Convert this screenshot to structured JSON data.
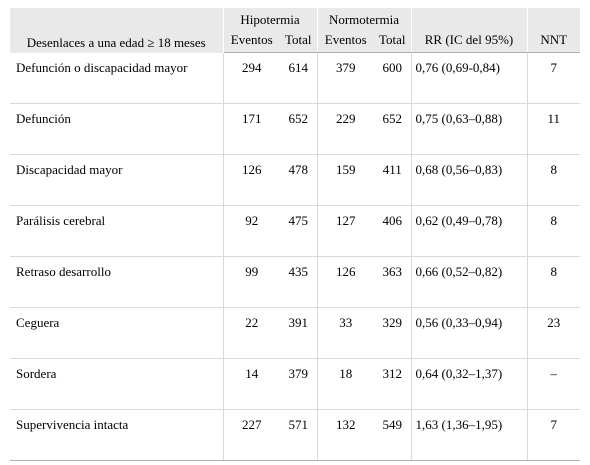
{
  "header": {
    "outcome_label": "Desenlaces a una edad ≥ 18 meses",
    "group_hypothermia": "Hipotermia",
    "group_normothermia": "Normotermia",
    "col_events_1": "Eventos",
    "col_total_1": "Total",
    "col_events_2": "Eventos",
    "col_total_2": "Total",
    "col_rr": "RR (IC del 95%)",
    "col_nnt": "NNT"
  },
  "rows": [
    {
      "label": "Defunción o discapacidad mayor",
      "hypo_events": "294",
      "hypo_total": "614",
      "normo_events": "379",
      "normo_total": "600",
      "rr": "0,76 (0,69-0,84)",
      "nnt": "7"
    },
    {
      "label": "Defunción",
      "hypo_events": "171",
      "hypo_total": "652",
      "normo_events": "229",
      "normo_total": "652",
      "rr": "0,75 (0,63–0,88)",
      "nnt": "11"
    },
    {
      "label": "Discapacidad mayor",
      "hypo_events": "126",
      "hypo_total": "478",
      "normo_events": "159",
      "normo_total": "411",
      "rr": "0,68 (0,56–0,83)",
      "nnt": "8"
    },
    {
      "label": "Parálisis cerebral",
      "hypo_events": "92",
      "hypo_total": "475",
      "normo_events": "127",
      "normo_total": "406",
      "rr": "0,62 (0,49–0,78)",
      "nnt": "8"
    },
    {
      "label": "Retraso desarrollo",
      "hypo_events": "99",
      "hypo_total": "435",
      "normo_events": "126",
      "normo_total": "363",
      "rr": "0,66 (0,52–0,82)",
      "nnt": "8"
    },
    {
      "label": "Ceguera",
      "hypo_events": "22",
      "hypo_total": "391",
      "normo_events": "33",
      "normo_total": "329",
      "rr": "0,56 (0,33–0,94)",
      "nnt": "23"
    },
    {
      "label": "Sordera",
      "hypo_events": "14",
      "hypo_total": "379",
      "normo_events": "18",
      "normo_total": "312",
      "rr": "0,64 (0,32–1,37)",
      "nnt": "–"
    },
    {
      "label": "Supervivencia intacta",
      "hypo_events": "227",
      "hypo_total": "571",
      "normo_events": "132",
      "normo_total": "549",
      "rr": "1,63 (1,36–1,95)",
      "nnt": "7"
    }
  ]
}
